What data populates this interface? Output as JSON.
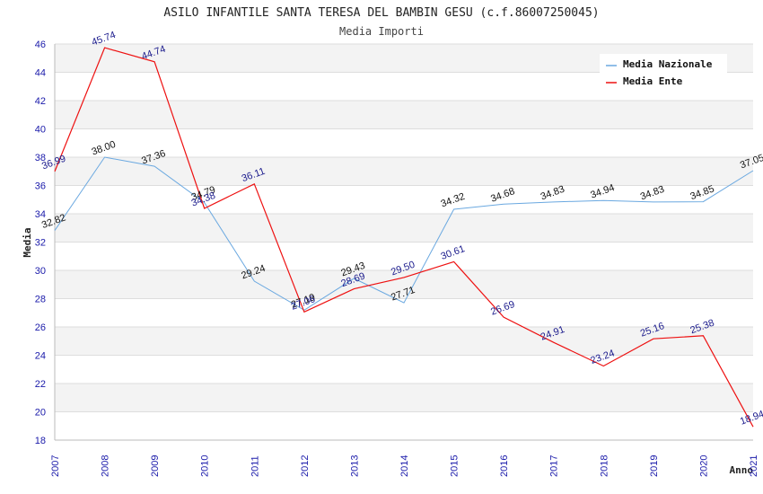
{
  "chart_data": {
    "type": "line",
    "title": "ASILO INFANTILE SANTA TERESA DEL BAMBIN GESU (c.f.86007250045)",
    "subtitle": "Media Importi",
    "xlabel": "Anno",
    "ylabel": "Media",
    "ylim": [
      18,
      46
    ],
    "yticks": [
      "18",
      "20",
      "22",
      "24",
      "26",
      "28",
      "30",
      "32",
      "34",
      "36",
      "38",
      "40",
      "42",
      "44",
      "46"
    ],
    "categories": [
      "2007",
      "2008",
      "2009",
      "2010",
      "2011",
      "2012",
      "2013",
      "2014",
      "2015",
      "2016",
      "2017",
      "2018",
      "2019",
      "2020",
      "2021"
    ],
    "grid": true,
    "legend_position": "top-right",
    "series": [
      {
        "name": "Media Nazionale",
        "color": "#6aa8e0",
        "values": [
          32.82,
          38.0,
          37.36,
          34.79,
          29.24,
          27.19,
          29.43,
          27.71,
          34.32,
          34.68,
          34.83,
          34.94,
          34.83,
          34.85,
          37.05
        ],
        "labels": [
          "32.82",
          "38.00",
          "37.36",
          "34.79",
          "29.24",
          "27.19",
          "29.43",
          "27.71",
          "34.32",
          "34.68",
          "34.83",
          "34.94",
          "34.83",
          "34.85",
          "37.05"
        ]
      },
      {
        "name": "Media Ente",
        "color": "#ee1111",
        "values": [
          36.99,
          45.74,
          44.74,
          34.38,
          36.11,
          27.06,
          28.69,
          29.5,
          30.61,
          26.69,
          24.91,
          23.24,
          25.16,
          25.38,
          18.94
        ],
        "labels": [
          "36.99",
          "45.74",
          "44.74",
          "34.38",
          "36.11",
          "27.06",
          "28.69",
          "29.50",
          "30.61",
          "26.69",
          "24.91",
          "23.24",
          "25.16",
          "25.38",
          "18.94"
        ]
      }
    ]
  }
}
